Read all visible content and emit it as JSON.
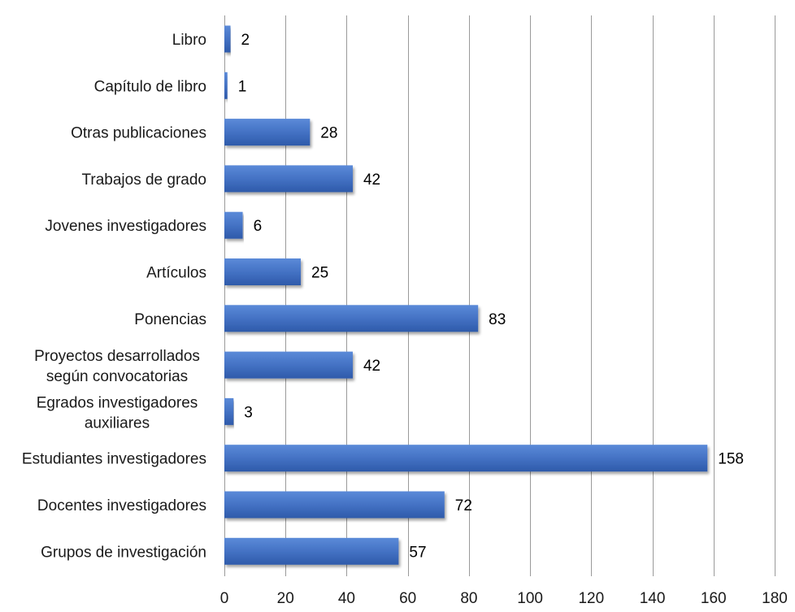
{
  "chart_data": {
    "type": "bar",
    "orientation": "horizontal",
    "categories": [
      "Libro",
      "Capítulo de libro",
      "Otras publicaciones",
      "Trabajos de grado",
      "Jovenes investigadores",
      "Artículos",
      "Ponencias",
      "Proyectos desarrollados según convocatorias",
      "Egrados investigadores auxiliares",
      "Estudiantes investigadores",
      "Docentes investigadores",
      "Grupos de investigación"
    ],
    "values": [
      2,
      1,
      28,
      42,
      6,
      25,
      83,
      42,
      3,
      158,
      72,
      57
    ],
    "xlim": [
      0,
      180
    ],
    "xticks": [
      0,
      20,
      40,
      60,
      80,
      100,
      120,
      140,
      160,
      180
    ],
    "grid": true,
    "legend": "none",
    "colors": {
      "bar": "#4472c4",
      "bar_light": "#5b8ad8",
      "bar_dark": "#2e5aaa",
      "grid": "#9a9a9a"
    },
    "title": "",
    "xlabel": "",
    "ylabel": ""
  }
}
